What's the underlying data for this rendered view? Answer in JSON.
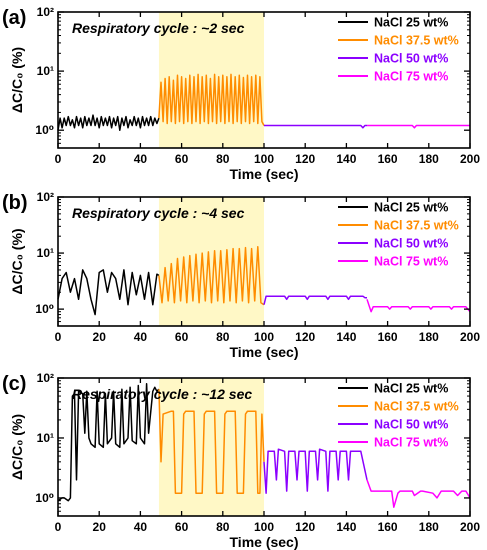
{
  "chart_data": [
    {
      "panel": "(a)",
      "type": "line",
      "annotation": "Respiratory cycle : ~2 sec",
      "xlabel": "Time (sec)",
      "ylabel": "ΔC/C₀ (%)",
      "xlim": [
        0,
        200
      ],
      "ylim": [
        0.5,
        100
      ],
      "yscale": "log",
      "xticks": [
        0,
        20,
        40,
        60,
        80,
        100,
        120,
        140,
        160,
        180,
        200
      ],
      "yticks": [
        {
          "value": 1,
          "label": "10⁰"
        },
        {
          "value": 10,
          "label": "10¹"
        },
        {
          "value": 100,
          "label": "10²"
        }
      ],
      "legend_position": "top-right",
      "highlight": {
        "x_range": [
          49,
          100
        ],
        "color": "#fff8c6"
      },
      "series": [
        {
          "name": "NaCl 25 wt%",
          "color": "#000000",
          "x": [
            0,
            1,
            2,
            3,
            4,
            5,
            6,
            7,
            8,
            9,
            10,
            11,
            12,
            13,
            14,
            15,
            16,
            17,
            18,
            19,
            20,
            21,
            22,
            23,
            24,
            25,
            26,
            27,
            28,
            29,
            30,
            31,
            32,
            33,
            34,
            35,
            36,
            37,
            38,
            39,
            40,
            41,
            42,
            43,
            44,
            45,
            46,
            47,
            48,
            49
          ],
          "y": [
            1.0,
            1.6,
            1.1,
            1.6,
            1.2,
            1.7,
            1.2,
            1.5,
            1.1,
            1.7,
            1.2,
            1.6,
            1.1,
            1.7,
            1.2,
            1.6,
            1.2,
            1.8,
            1.2,
            1.6,
            1.1,
            1.7,
            1.2,
            1.6,
            1.2,
            1.7,
            1.1,
            1.6,
            1.2,
            1.7,
            1.0,
            1.6,
            1.2,
            1.7,
            1.1,
            1.5,
            1.2,
            1.7,
            1.2,
            1.6,
            1.1,
            1.7,
            1.2,
            1.6,
            1.2,
            1.7,
            1.2,
            1.6,
            1.3,
            1.6
          ]
        },
        {
          "name": "NaCl 37.5 wt%",
          "color": "#ff8c00",
          "x": [
            49,
            50,
            51,
            52,
            53,
            54,
            55,
            56,
            57,
            58,
            59,
            60,
            61,
            62,
            63,
            64,
            65,
            66,
            67,
            68,
            69,
            70,
            71,
            72,
            73,
            74,
            75,
            76,
            77,
            78,
            79,
            80,
            81,
            82,
            83,
            84,
            85,
            86,
            87,
            88,
            89,
            90,
            91,
            92,
            93,
            94,
            95,
            96,
            97,
            98,
            99,
            100
          ],
          "y": [
            1.6,
            6.5,
            1.4,
            7.5,
            1.3,
            8.0,
            1.4,
            7.0,
            1.3,
            8.5,
            1.4,
            8.0,
            1.3,
            7.5,
            1.4,
            8.5,
            1.3,
            8.0,
            1.4,
            8.8,
            1.3,
            8.0,
            1.4,
            8.5,
            1.3,
            7.5,
            1.4,
            8.8,
            1.3,
            8.0,
            1.4,
            8.5,
            1.3,
            8.0,
            1.4,
            8.8,
            1.3,
            8.0,
            1.4,
            8.5,
            1.3,
            7.8,
            1.4,
            8.5,
            1.3,
            8.0,
            1.4,
            8.5,
            1.3,
            8.0,
            1.4,
            1.2
          ]
        },
        {
          "name": "NaCl 50 wt%",
          "color": "#8b00ff",
          "x": [
            100,
            110,
            120,
            130,
            140,
            145,
            147,
            148,
            149,
            150
          ],
          "y": [
            1.2,
            1.2,
            1.2,
            1.2,
            1.2,
            1.2,
            1.2,
            1.1,
            1.2,
            1.2
          ]
        },
        {
          "name": "NaCl 75 wt%",
          "color": "#ff00ff",
          "x": [
            150,
            160,
            170,
            172,
            173,
            174,
            180,
            190,
            200
          ],
          "y": [
            1.2,
            1.2,
            1.2,
            1.2,
            1.1,
            1.2,
            1.2,
            1.2,
            1.2
          ]
        }
      ]
    },
    {
      "panel": "(b)",
      "type": "line",
      "annotation": "Respiratory cycle : ~4 sec",
      "xlabel": "Time (sec)",
      "ylabel": "ΔC/C₀ (%)",
      "xlim": [
        0,
        200
      ],
      "ylim": [
        0.5,
        100
      ],
      "yscale": "log",
      "xticks": [
        0,
        20,
        40,
        60,
        80,
        100,
        120,
        140,
        160,
        180,
        200
      ],
      "yticks": [
        {
          "value": 1,
          "label": "10⁰"
        },
        {
          "value": 10,
          "label": "10¹"
        },
        {
          "value": 100,
          "label": "10²"
        }
      ],
      "legend_position": "top-right",
      "highlight": {
        "x_range": [
          49,
          100
        ],
        "color": "#fff8c6"
      },
      "series": [
        {
          "name": "NaCl 25 wt%",
          "color": "#000000",
          "x": [
            0,
            2,
            4,
            6,
            8,
            10,
            12,
            14,
            16,
            18,
            20,
            22,
            24,
            26,
            28,
            30,
            32,
            34,
            36,
            38,
            40,
            42,
            44,
            46,
            48,
            49
          ],
          "y": [
            1.5,
            3.5,
            4.5,
            2.0,
            3.5,
            1.5,
            5.0,
            3.5,
            1.5,
            0.8,
            4.5,
            5.0,
            2.0,
            4.5,
            3.5,
            1.5,
            5.0,
            1.2,
            4.5,
            1.8,
            4.0,
            1.5,
            4.5,
            1.2,
            4.2,
            4.0
          ]
        },
        {
          "name": "NaCl 37.5 wt%",
          "color": "#ff8c00",
          "x": [
            49,
            50.5,
            52,
            53.5,
            55,
            56.5,
            58,
            59.5,
            61,
            62.5,
            64,
            65.5,
            67,
            68.5,
            70,
            71.5,
            73,
            74.5,
            76,
            77.5,
            79,
            80.5,
            82,
            83.5,
            85,
            86.5,
            88,
            89.5,
            91,
            92.5,
            94,
            95.5,
            97,
            98.5,
            100
          ],
          "y": [
            4.0,
            1.3,
            5.5,
            1.4,
            6.5,
            1.3,
            8.0,
            1.4,
            8.5,
            1.3,
            9.0,
            1.4,
            9.5,
            1.3,
            10.0,
            1.4,
            10.5,
            1.3,
            11.0,
            1.4,
            11.0,
            1.3,
            11.5,
            1.4,
            12.0,
            1.3,
            12.0,
            1.4,
            12.5,
            1.3,
            12.0,
            1.4,
            13.0,
            1.3,
            1.2
          ]
        },
        {
          "name": "NaCl 50 wt%",
          "color": "#8b00ff",
          "x": [
            100,
            101,
            110,
            111,
            112,
            120,
            121,
            122,
            130,
            131,
            132,
            140,
            141,
            142,
            148,
            149,
            150
          ],
          "y": [
            1.2,
            1.7,
            1.7,
            1.5,
            1.7,
            1.7,
            1.5,
            1.7,
            1.7,
            1.5,
            1.7,
            1.7,
            1.5,
            1.7,
            1.7,
            1.6,
            1.6
          ]
        },
        {
          "name": "NaCl 75 wt%",
          "color": "#ff00ff",
          "x": [
            150,
            152,
            153,
            160,
            161,
            162,
            170,
            171,
            172,
            180,
            181,
            182,
            190,
            191,
            192,
            198,
            200
          ],
          "y": [
            1.5,
            0.9,
            1.1,
            1.1,
            1.0,
            1.1,
            1.1,
            1.0,
            1.1,
            1.1,
            1.0,
            1.1,
            1.1,
            1.0,
            1.1,
            1.1,
            0.9
          ]
        }
      ]
    },
    {
      "panel": "(c)",
      "type": "line",
      "annotation": "Respiratory cycle : ~12 sec",
      "xlabel": "Time (sec)",
      "ylabel": "ΔC/C₀ (%)",
      "xlim": [
        0,
        200
      ],
      "ylim": [
        0.5,
        100
      ],
      "yscale": "log",
      "xticks": [
        0,
        20,
        40,
        60,
        80,
        100,
        120,
        140,
        160,
        180,
        200
      ],
      "yticks": [
        {
          "value": 1,
          "label": "10⁰"
        },
        {
          "value": 10,
          "label": "10¹"
        },
        {
          "value": 100,
          "label": "10²"
        }
      ],
      "legend_position": "top-right",
      "highlight": {
        "x_range": [
          49,
          100
        ],
        "color": "#fff8c6"
      },
      "series": [
        {
          "name": "NaCl 25 wt%",
          "color": "#000000",
          "x": [
            0,
            2,
            3,
            5,
            6,
            7,
            8,
            9,
            10,
            12,
            13,
            14,
            15,
            16,
            18,
            19,
            20,
            22,
            23,
            24,
            26,
            27,
            28,
            30,
            31,
            32,
            34,
            35,
            36,
            38,
            39,
            40,
            42,
            43,
            44,
            46,
            47,
            48,
            49
          ],
          "y": [
            0.9,
            1.0,
            1.0,
            0.9,
            1.0,
            50,
            55,
            2.0,
            60,
            55,
            12,
            60,
            10,
            8.0,
            7.0,
            60,
            8.0,
            7.0,
            55,
            8.0,
            10,
            60,
            8.0,
            7.0,
            65,
            8.0,
            10,
            70,
            9.0,
            8.0,
            75,
            10,
            8.0,
            80,
            12,
            60,
            70,
            60,
            65
          ]
        },
        {
          "name": "NaCl 37.5 wt%",
          "color": "#ff8c00",
          "x": [
            49,
            50,
            51,
            55,
            56,
            57,
            58,
            60,
            61,
            62,
            66,
            67,
            68,
            70,
            71,
            72,
            76,
            77,
            78,
            80,
            81,
            82,
            86,
            87,
            88,
            90,
            91,
            92,
            96,
            97,
            98,
            99,
            100
          ],
          "y": [
            65,
            4.0,
            25,
            28,
            28,
            1.2,
            1.2,
            1.2,
            25,
            28,
            28,
            1.2,
            1.2,
            1.2,
            25,
            28,
            28,
            1.2,
            1.2,
            1.2,
            25,
            28,
            28,
            1.2,
            1.2,
            1.2,
            25,
            28,
            28,
            1.2,
            1.2,
            25,
            4.0
          ]
        },
        {
          "name": "NaCl 50 wt%",
          "color": "#8b00ff",
          "x": [
            100,
            101,
            102,
            105,
            106,
            107,
            110,
            111,
            112,
            115,
            116,
            117,
            120,
            121,
            122,
            125,
            126,
            127,
            130,
            131,
            132,
            135,
            136,
            137,
            140,
            141,
            142,
            145,
            146,
            147,
            150
          ],
          "y": [
            4.0,
            1.2,
            6.0,
            6.0,
            2.0,
            6.5,
            6.0,
            1.3,
            6.0,
            6.0,
            2.0,
            6.0,
            6.0,
            1.3,
            6.0,
            6.0,
            2.0,
            6.5,
            6.0,
            1.3,
            6.0,
            6.0,
            2.0,
            6.0,
            6.0,
            2.0,
            6.0,
            6.0,
            6.0,
            6.0,
            2.0
          ]
        },
        {
          "name": "NaCl 75 wt%",
          "color": "#ff00ff",
          "x": [
            150,
            152,
            160,
            162,
            163,
            165,
            166,
            170,
            172,
            173,
            176,
            177,
            182,
            184,
            186,
            190,
            192,
            194,
            196,
            198,
            200
          ],
          "y": [
            2.0,
            1.3,
            1.3,
            1.3,
            0.7,
            1.2,
            1.3,
            1.3,
            1.3,
            1.1,
            1.3,
            1.3,
            1.2,
            1.0,
            1.3,
            1.3,
            1.3,
            1.1,
            1.3,
            1.3,
            1.0
          ]
        }
      ]
    }
  ]
}
